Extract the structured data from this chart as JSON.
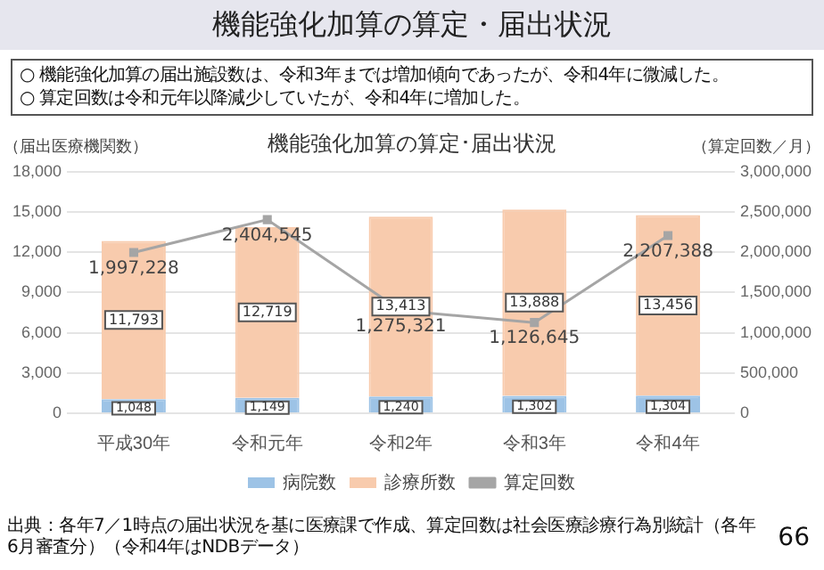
{
  "chart_data": {
    "type": "bar",
    "title": "機能強化加算の算定・届出状況",
    "subtitle": "機能強化加算の算定･届出状況",
    "ylabel": "（届出医療機関数）",
    "y2label": "（算定回数／月）",
    "categories": [
      "平成30年",
      "令和元年",
      "令和2年",
      "令和3年",
      "令和4年"
    ],
    "stacked": true,
    "series": [
      {
        "name": "病院数",
        "color": "#9dc3e6",
        "values": [
          1048,
          1149,
          1240,
          1302,
          1304
        ],
        "value_labels": [
          "1,048",
          "1,149",
          "1,240",
          "1,302",
          "1,304"
        ]
      },
      {
        "name": "診療所数",
        "color": "#f8cbad",
        "values": [
          11793,
          12719,
          13413,
          13888,
          13456
        ],
        "value_labels": [
          "11,793",
          "12,719",
          "13,413",
          "13,888",
          "13,456"
        ]
      },
      {
        "name": "算定回数",
        "type": "line",
        "axis": "y2",
        "color": "#a5a5a5",
        "values": [
          1997228,
          2404545,
          1275321,
          1126645,
          2207388
        ],
        "value_labels": [
          "1,997,228",
          "2,404,545",
          "1,275,321",
          "1,126,645",
          "2,207,388"
        ]
      }
    ],
    "ylim": [
      0,
      18000
    ],
    "yticks": [
      {
        "value": 0,
        "label": "0"
      },
      {
        "value": 3000,
        "label": "3,000"
      },
      {
        "value": 6000,
        "label": "6,000"
      },
      {
        "value": 9000,
        "label": "9,000"
      },
      {
        "value": 12000,
        "label": "12,000"
      },
      {
        "value": 15000,
        "label": "15,000"
      },
      {
        "value": 18000,
        "label": "18,000"
      }
    ],
    "y2lim": [
      0,
      3000000
    ],
    "y2ticks": [
      {
        "value": 0,
        "label": "0"
      },
      {
        "value": 500000,
        "label": "500,000"
      },
      {
        "value": 1000000,
        "label": "1,000,000"
      },
      {
        "value": 1500000,
        "label": "1,500,000"
      },
      {
        "value": 2000000,
        "label": "2,000,000"
      },
      {
        "value": 2500000,
        "label": "2,500,000"
      },
      {
        "value": 3000000,
        "label": "3,000,000"
      }
    ],
    "grid": "y",
    "legend": "bottom",
    "marker": "square",
    "annotations": [
      "○ 機能強化加算の届出施設数は、令和3年までは増加傾向であったが、令和4年に微減した。",
      "○ 算定回数は令和元年以降減少していたが、令和4年に増加した。",
      "出典：各年7／1時点の届出状況を基に医療課で作成、算定回数は社会医療診療行為別統計（各年6月審査分）（令和4年はNDBデータ）",
      "66"
    ]
  }
}
